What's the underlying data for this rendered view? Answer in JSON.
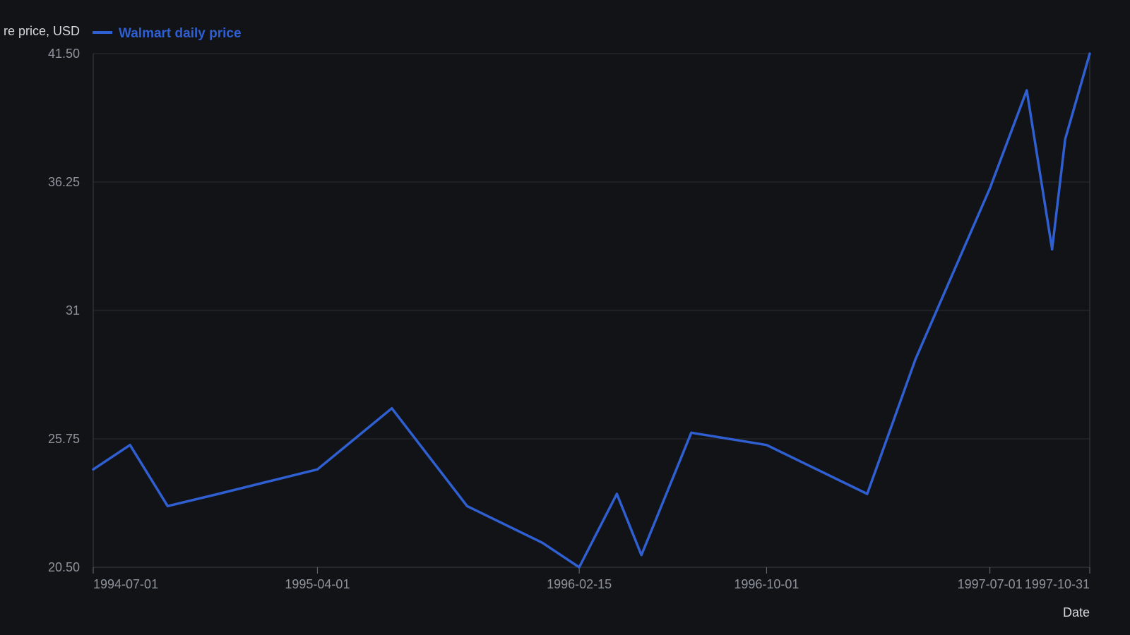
{
  "chart_data": {
    "type": "line",
    "title": "",
    "ylabel": "re price, USD",
    "xlabel": "Date",
    "legend": {
      "position": "top-left",
      "entries": [
        "Walmart daily price"
      ]
    },
    "grid": true,
    "ylim": [
      20.5,
      41.5
    ],
    "xlim": [
      "1994-07-01",
      "1997-10-31"
    ],
    "y_ticks": [
      "41.50",
      "36.25",
      "31",
      "25.75",
      "20.50"
    ],
    "x_ticks": [
      "1994-07-01",
      "1995-04-01",
      "1996-02-15",
      "1996-10-01",
      "1997-07-01",
      "1997-10-31"
    ],
    "series": [
      {
        "name": "Walmart daily price",
        "color": "#2f5fd0",
        "x": [
          "1994-07-01",
          "1994-08-15",
          "1994-09-30",
          "1994-12-01",
          "1995-04-01",
          "1995-07-01",
          "1995-10-01",
          "1996-01-01",
          "1996-02-15",
          "1996-04-01",
          "1996-05-01",
          "1996-07-01",
          "1996-10-01",
          "1997-02-01",
          "1997-04-01",
          "1997-07-01",
          "1997-08-15",
          "1997-09-15",
          "1997-10-01",
          "1997-10-31"
        ],
        "values": [
          24.5,
          25.5,
          23.0,
          23.5,
          24.5,
          27.0,
          23.0,
          21.5,
          20.5,
          23.5,
          21.0,
          26.0,
          25.5,
          23.5,
          29.0,
          36.0,
          40.0,
          33.5,
          38.0,
          41.5
        ]
      }
    ]
  }
}
